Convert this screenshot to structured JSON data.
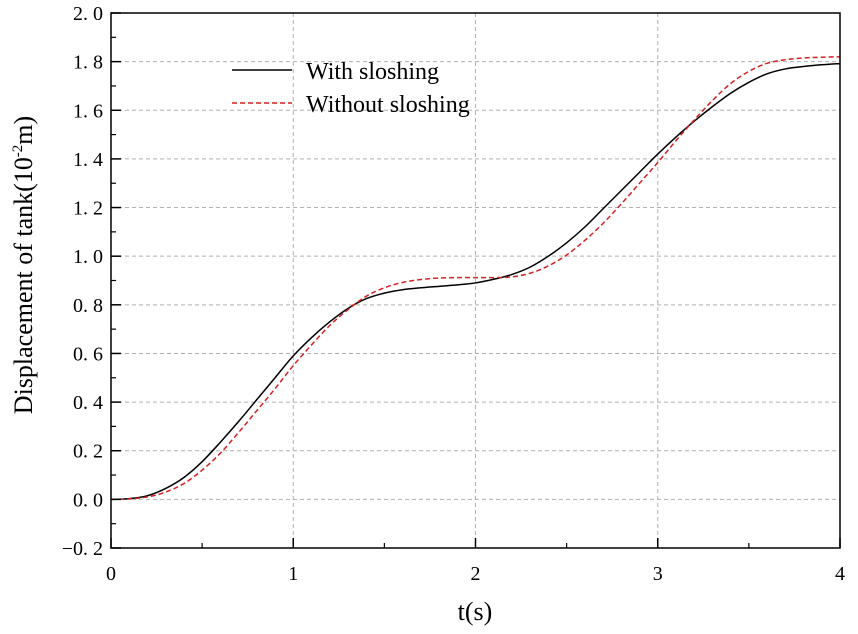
{
  "chart_data": {
    "type": "line",
    "title": "",
    "xlabel": "t(s)",
    "ylabel_parts": {
      "main": "Displacement of tank(10",
      "sup": "-2",
      "end": "m)"
    },
    "xlim": [
      0,
      4
    ],
    "ylim": [
      -0.2,
      2.0
    ],
    "xticks": [
      0,
      1,
      2,
      3,
      4
    ],
    "xtick_labels": [
      "0",
      "1",
      "2",
      "3",
      "4"
    ],
    "yticks": [
      -0.2,
      0.0,
      0.2,
      0.4,
      0.6,
      0.8,
      1.0,
      1.2,
      1.4,
      1.6,
      1.8,
      2.0
    ],
    "ytick_labels": [
      "−0. 2",
      "0. 0",
      "0. 2",
      "0. 4",
      "0. 6",
      "0. 8",
      "1. 0",
      "1. 2",
      "1. 4",
      "1. 6",
      "1. 8",
      "2. 0"
    ],
    "grid": true,
    "legend_position": "top-center",
    "series": [
      {
        "name": "With sloshing",
        "color": "#000000",
        "dash": "solid",
        "x": [
          0,
          0.1,
          0.2,
          0.3,
          0.4,
          0.5,
          0.6,
          0.7,
          0.8,
          0.9,
          1.0,
          1.1,
          1.2,
          1.3,
          1.4,
          1.5,
          1.6,
          1.7,
          1.8,
          1.9,
          2.0,
          2.1,
          2.2,
          2.3,
          2.4,
          2.5,
          2.6,
          2.7,
          2.8,
          2.9,
          3.0,
          3.1,
          3.2,
          3.3,
          3.4,
          3.5,
          3.6,
          3.7,
          3.8,
          3.9,
          4.0
        ],
        "y": [
          0.0,
          0.003,
          0.015,
          0.045,
          0.09,
          0.155,
          0.235,
          0.32,
          0.41,
          0.5,
          0.59,
          0.665,
          0.73,
          0.785,
          0.825,
          0.848,
          0.862,
          0.87,
          0.876,
          0.882,
          0.89,
          0.905,
          0.925,
          0.955,
          1.0,
          1.055,
          1.12,
          1.195,
          1.27,
          1.345,
          1.42,
          1.49,
          1.555,
          1.615,
          1.67,
          1.715,
          1.75,
          1.77,
          1.78,
          1.787,
          1.792
        ]
      },
      {
        "name": "Without sloshing",
        "color": "#d62020",
        "dash": "dashed",
        "x": [
          0,
          0.1,
          0.2,
          0.3,
          0.4,
          0.5,
          0.6,
          0.7,
          0.8,
          0.9,
          1.0,
          1.1,
          1.2,
          1.3,
          1.4,
          1.5,
          1.6,
          1.7,
          1.8,
          1.9,
          2.0,
          2.1,
          2.2,
          2.3,
          2.4,
          2.5,
          2.6,
          2.7,
          2.8,
          2.9,
          3.0,
          3.1,
          3.2,
          3.3,
          3.4,
          3.5,
          3.6,
          3.7,
          3.8,
          3.9,
          4.0
        ],
        "y": [
          0.0,
          0.002,
          0.01,
          0.03,
          0.065,
          0.12,
          0.19,
          0.275,
          0.365,
          0.455,
          0.55,
          0.635,
          0.715,
          0.78,
          0.835,
          0.87,
          0.892,
          0.904,
          0.91,
          0.912,
          0.912,
          0.912,
          0.915,
          0.93,
          0.96,
          1.005,
          1.065,
          1.135,
          1.215,
          1.3,
          1.385,
          1.475,
          1.56,
          1.64,
          1.71,
          1.76,
          1.793,
          1.808,
          1.815,
          1.818,
          1.82
        ]
      }
    ]
  }
}
